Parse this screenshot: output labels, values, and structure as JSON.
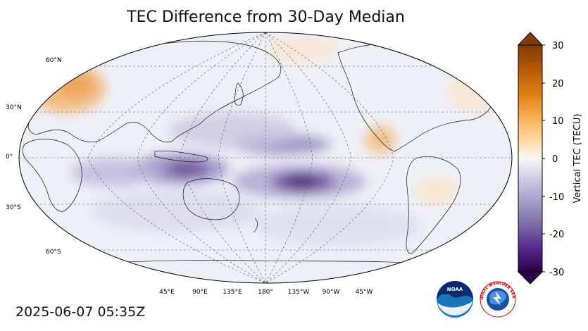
{
  "title": "TEC Difference from 30-Day Median",
  "timestamp": "2025-06-07 05:35Z",
  "map": {
    "lat_labels": [
      "60°N",
      "30°N",
      "0°",
      "30°S",
      "60°S"
    ],
    "lon_labels": [
      "45°E",
      "90°E",
      "135°E",
      "180°",
      "135°W",
      "90°W",
      "45°W"
    ],
    "anomalies": [
      {
        "region": "Europe",
        "sign": "positive",
        "peak": 12
      },
      {
        "region": "Central America",
        "sign": "positive",
        "peak": 8
      },
      {
        "region": "Western Pacific",
        "sign": "negative",
        "peak": -18
      },
      {
        "region": "South Pacific",
        "sign": "negative",
        "peak": -25
      },
      {
        "region": "Indian Ocean",
        "sign": "negative",
        "peak": -12
      },
      {
        "region": "North Pacific",
        "sign": "negative",
        "peak": -15
      }
    ]
  },
  "colorbar": {
    "label": "Vertical TEC (TECU)",
    "min": -30,
    "max": 30,
    "ticks": [
      "30",
      "20",
      "10",
      "0",
      "-10",
      "-20",
      "-30"
    ],
    "colors": [
      "#7f3b08",
      "#b35806",
      "#e08214",
      "#fdb863",
      "#fee0b6",
      "#f7f7f7",
      "#d8daeb",
      "#b2abd2",
      "#8073ac",
      "#542788",
      "#2d004b"
    ]
  },
  "logos": {
    "noaa_text": "NOAA",
    "nws_text": "NATIONAL WEATHER SERVICE"
  }
}
